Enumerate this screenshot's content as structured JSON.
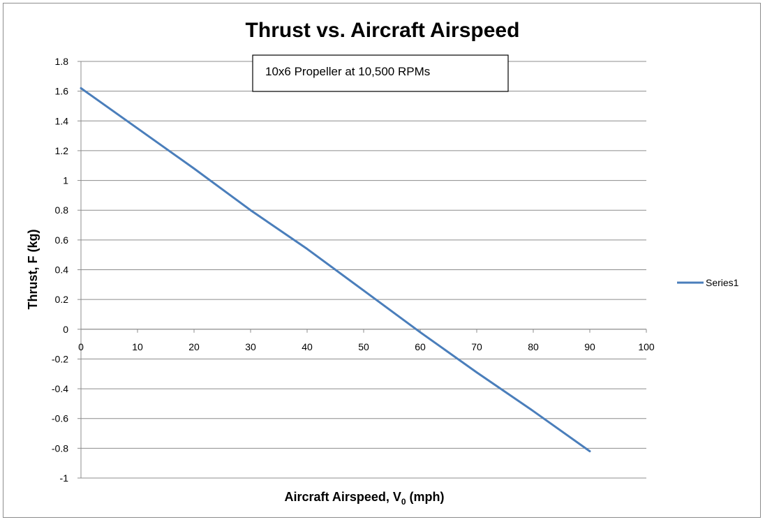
{
  "chart_data": {
    "type": "line",
    "title": "Thrust vs. Aircraft Airspeed",
    "annotation": "10x6 Propeller at 10,500 RPMs",
    "xlabel_main": "Aircraft Airspeed, V",
    "xlabel_sub": "0",
    "xlabel_unit": " (mph)",
    "ylabel": "Thrust, F (kg)",
    "xlim": [
      0,
      100
    ],
    "ylim": [
      -1,
      1.8
    ],
    "xticks": [
      0,
      10,
      20,
      30,
      40,
      50,
      60,
      70,
      80,
      90,
      100
    ],
    "yticks": [
      1.8,
      1.6,
      1.4,
      1.2,
      1,
      0.8,
      0.6,
      0.4,
      0.2,
      0,
      -0.2,
      -0.4,
      -0.6,
      -0.8,
      -1
    ],
    "ytick_labels": [
      "1.8",
      "1.6",
      "1.4",
      "1.2",
      "1",
      "0.8",
      "0.6",
      "0.4",
      "0.2",
      "0",
      "-0.2",
      "-0.4",
      "-0.6",
      "-0.8",
      "-1"
    ],
    "xtick_labels": [
      "0",
      "10",
      "20",
      "30",
      "40",
      "50",
      "60",
      "70",
      "80",
      "90",
      "100"
    ],
    "grid": true,
    "legend_position": "right",
    "series": [
      {
        "name": "Series1",
        "color": "#4a7ebb",
        "x": [
          0,
          10,
          20,
          30,
          40,
          50,
          60,
          70,
          80,
          90
        ],
        "y": [
          1.62,
          1.35,
          1.08,
          0.8,
          0.54,
          0.26,
          -0.02,
          -0.29,
          -0.55,
          -0.82
        ]
      }
    ]
  }
}
